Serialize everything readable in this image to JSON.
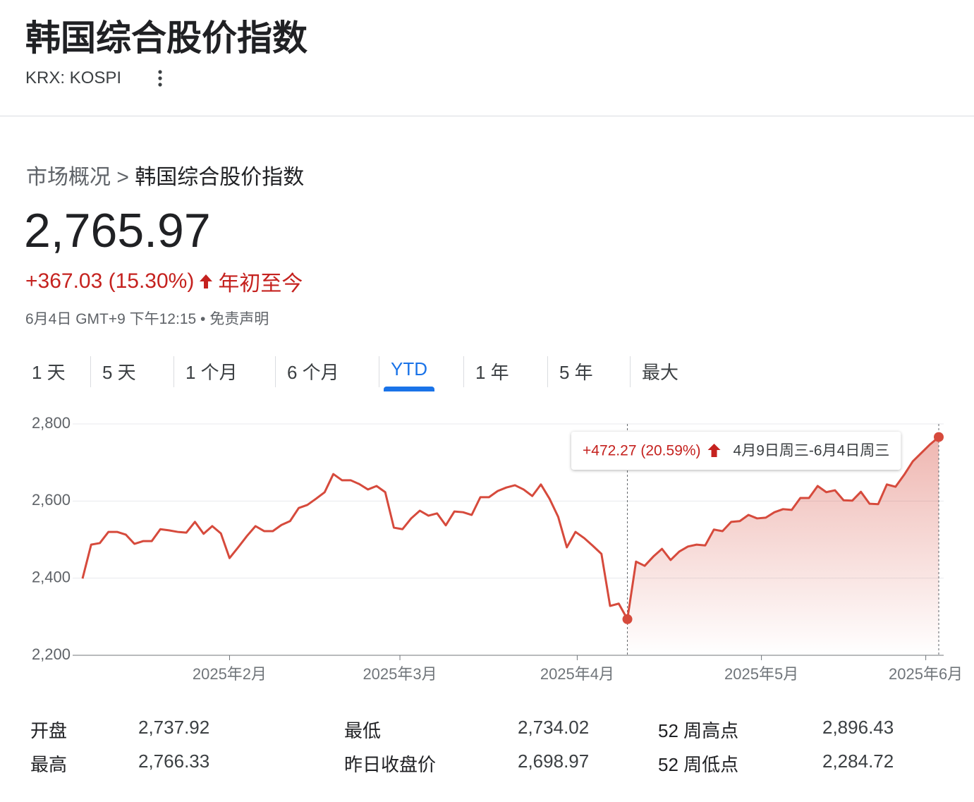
{
  "header": {
    "title": "韩国综合股价指数",
    "ticker": "KRX: KOSPI"
  },
  "breadcrumb": {
    "parent": "市场概况",
    "separator": ">",
    "current": "韩国综合股价指数"
  },
  "quote": {
    "price": "2,765.97",
    "change": "+367.03 (15.30%)",
    "period": "年初至今",
    "timestamp": "6月4日 GMT+9 下午12:15",
    "separator": "•",
    "disclaimer": "免责声明"
  },
  "tabs": {
    "items": [
      "1 天",
      "5 天",
      "1 个月",
      "6 个月",
      "YTD",
      "1 年",
      "5 年",
      "最大"
    ],
    "active": 4
  },
  "chart_data": {
    "type": "line",
    "color": "#d64a3c",
    "grid": true,
    "values": [
      2399,
      2487,
      2491,
      2520,
      2520,
      2513,
      2489,
      2496,
      2496,
      2527,
      2524,
      2520,
      2518,
      2546,
      2515,
      2535,
      2516,
      2452,
      2480,
      2509,
      2535,
      2522,
      2522,
      2538,
      2548,
      2582,
      2590,
      2606,
      2623,
      2670,
      2654,
      2654,
      2644,
      2630,
      2639,
      2623,
      2531,
      2527,
      2555,
      2575,
      2562,
      2568,
      2537,
      2573,
      2571,
      2564,
      2610,
      2610,
      2626,
      2635,
      2641,
      2630,
      2613,
      2643,
      2606,
      2559,
      2480,
      2520,
      2504,
      2484,
      2463,
      2328,
      2334,
      2293.7,
      2443,
      2432,
      2456,
      2476,
      2447,
      2469,
      2482,
      2487,
      2485,
      2526,
      2522,
      2546,
      2548,
      2564,
      2555,
      2557,
      2571,
      2579,
      2577,
      2608,
      2608,
      2639,
      2623,
      2628,
      2602,
      2601,
      2624,
      2593,
      2592,
      2643,
      2637,
      2668,
      2703,
      2725,
      2747,
      2765.97
    ],
    "ylim": [
      2200,
      2800
    ],
    "yticks": [
      {
        "value": 2200,
        "label": "2,200"
      },
      {
        "value": 2400,
        "label": "2,400"
      },
      {
        "value": 2600,
        "label": "2,600"
      },
      {
        "value": 2800,
        "label": "2,800"
      }
    ],
    "xticks": [
      {
        "value": 17,
        "label": "2025年2月"
      },
      {
        "value": 36.7,
        "label": "2025年3月"
      },
      {
        "value": 57.2,
        "label": "2025年4月"
      },
      {
        "value": 78.5,
        "label": "2025年5月"
      },
      {
        "value": 97.5,
        "label": "2025年6月"
      }
    ],
    "selection": {
      "start": 63,
      "end": 99,
      "change": "+472.27 (20.59%)",
      "range": "4月9日周三-6月4日周三"
    }
  },
  "stats": {
    "rows": [
      [
        "开盘",
        "2,737.92",
        "最低",
        "2,734.02",
        "52 周高点",
        "2,896.43"
      ],
      [
        "最高",
        "2,766.33",
        "昨日收盘价",
        "2,698.97",
        "52 周低点",
        "2,284.72"
      ]
    ]
  }
}
